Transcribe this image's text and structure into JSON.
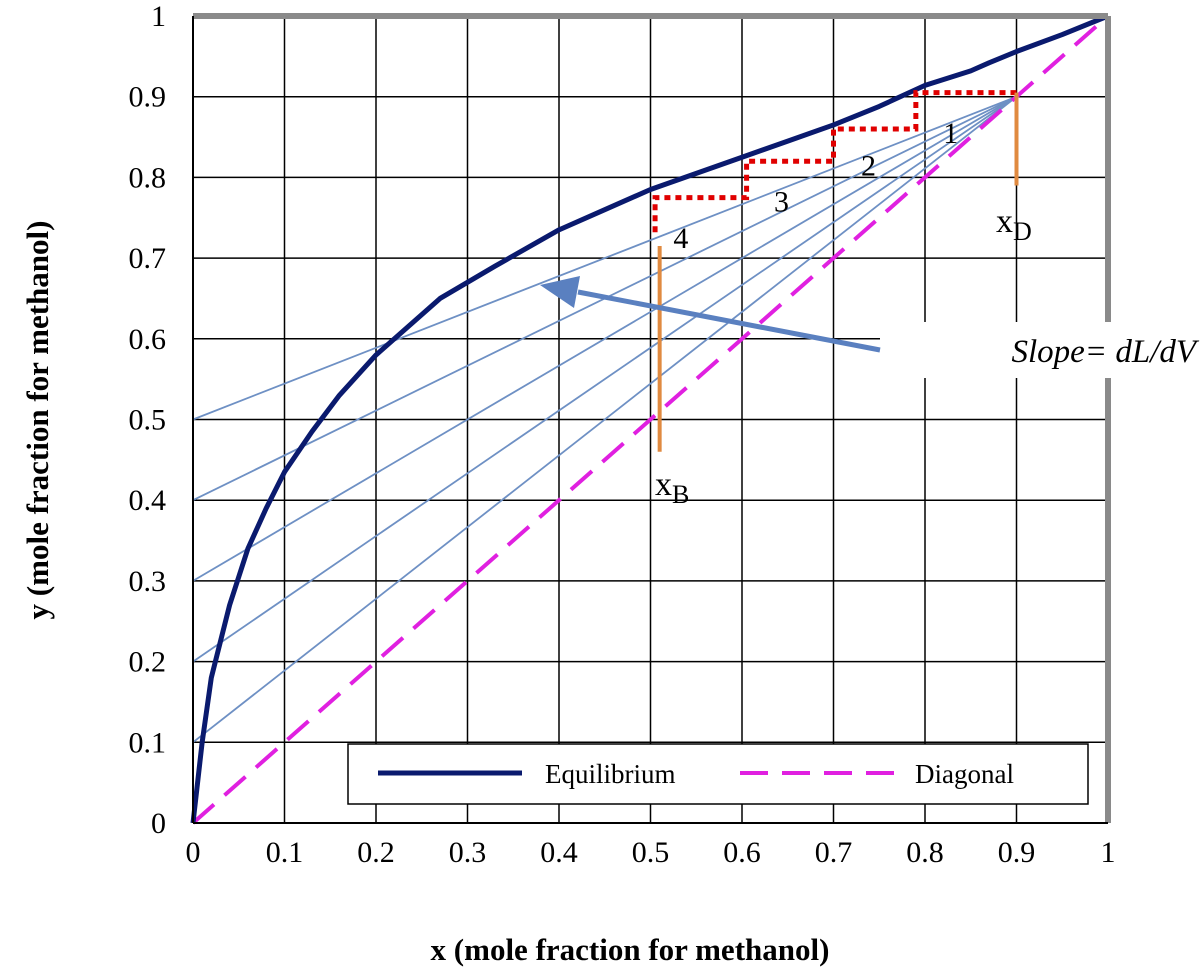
{
  "chart_data": {
    "type": "line",
    "xlabel": "x (mole fraction for methanol)",
    "ylabel": "y (mole fraction for methanol)",
    "xlim": [
      0,
      1
    ],
    "ylim": [
      0,
      1
    ],
    "x_ticks": [
      "0",
      "0.1",
      "0.2",
      "0.3",
      "0.4",
      "0.5",
      "0.6",
      "0.7",
      "0.8",
      "0.9",
      "1"
    ],
    "y_ticks": [
      "0",
      "0.1",
      "0.2",
      "0.3",
      "0.4",
      "0.5",
      "0.6",
      "0.7",
      "0.8",
      "0.9",
      "1"
    ],
    "grid": true,
    "legend_position": "bottom-right",
    "series": [
      {
        "name": "Equilibrium",
        "color": "#0a1a6e",
        "style": "solid",
        "x": [
          0,
          0.01,
          0.02,
          0.04,
          0.06,
          0.08,
          0.1,
          0.13,
          0.16,
          0.2,
          0.27,
          0.33,
          0.4,
          0.45,
          0.5,
          0.55,
          0.6,
          0.65,
          0.7,
          0.75,
          0.8,
          0.85,
          0.87,
          0.9,
          0.95,
          1.0
        ],
        "y": [
          0,
          0.1,
          0.18,
          0.27,
          0.34,
          0.39,
          0.435,
          0.485,
          0.53,
          0.58,
          0.65,
          0.69,
          0.735,
          0.76,
          0.785,
          0.805,
          0.825,
          0.845,
          0.865,
          0.888,
          0.914,
          0.932,
          0.942,
          0.956,
          0.977,
          1.0
        ]
      },
      {
        "name": "Diagonal",
        "color": "#e020e0",
        "style": "dashed",
        "x": [
          0,
          1
        ],
        "y": [
          0,
          1
        ]
      }
    ],
    "operating_lines": {
      "color": "#6e90c4",
      "through": [
        0.9,
        0.9
      ],
      "y_intercepts": [
        0.1,
        0.2,
        0.3,
        0.4,
        0.5
      ],
      "to_equilibrium": true
    },
    "stage_steps": {
      "color": "#e00000",
      "points": [
        [
          0.9,
          0.905
        ],
        [
          0.79,
          0.905
        ],
        [
          0.79,
          0.86
        ],
        [
          0.7,
          0.86
        ],
        [
          0.7,
          0.82
        ],
        [
          0.605,
          0.82
        ],
        [
          0.605,
          0.775
        ],
        [
          0.505,
          0.775
        ],
        [
          0.505,
          0.73
        ]
      ]
    },
    "stage_labels": [
      {
        "text": "1",
        "x": 0.82,
        "y": 0.855
      },
      {
        "text": "2",
        "x": 0.73,
        "y": 0.815
      },
      {
        "text": "3",
        "x": 0.635,
        "y": 0.77
      },
      {
        "text": "4",
        "x": 0.525,
        "y": 0.725
      }
    ],
    "vertical_markers": {
      "color": "#e08a40",
      "lines": [
        {
          "x": 0.9,
          "y_from": 0.79,
          "y_to": 0.905
        },
        {
          "x": 0.51,
          "y_from": 0.46,
          "y_to": 0.715
        }
      ]
    },
    "annotations": {
      "xd_main": "x",
      "xd_sub": "D",
      "xb_main": "x",
      "xb_sub": "B",
      "slope_label": "Slope= dL/dV"
    }
  }
}
